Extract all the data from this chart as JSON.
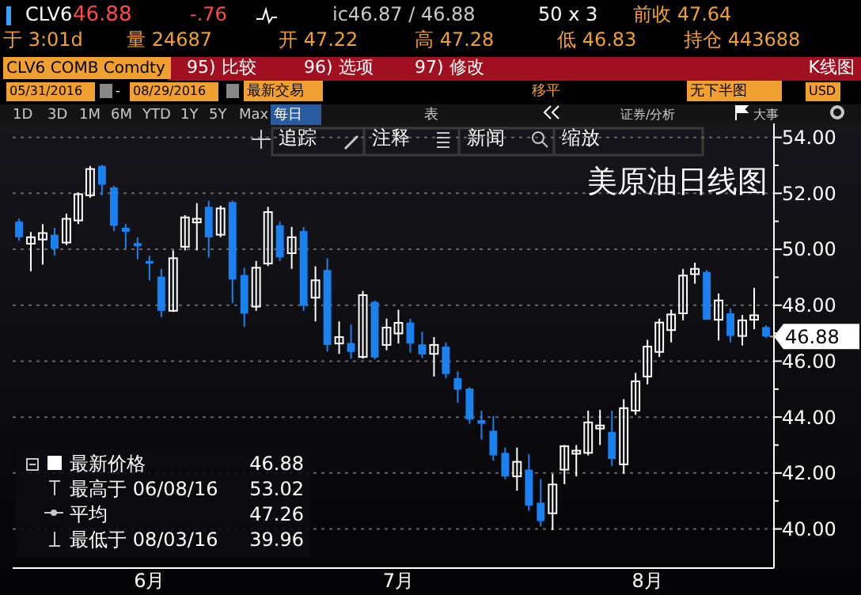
{
  "chart_data": {
    "type": "candlestick",
    "title": "美原油日线图",
    "categories": [
      null,
      null,
      null,
      null,
      null,
      null,
      null,
      null,
      null,
      null,
      null,
      "6月",
      null,
      null,
      null,
      null,
      null,
      null,
      null,
      null,
      null,
      null,
      null,
      null,
      null,
      null,
      null,
      null,
      null,
      null,
      null,
      null,
      "7月",
      null,
      null,
      null,
      null,
      null,
      null,
      null,
      null,
      null,
      null,
      null,
      null,
      null,
      null,
      null,
      null,
      null,
      null,
      null,
      null,
      "8月",
      null,
      null,
      null,
      null,
      null,
      null,
      null,
      null,
      null,
      null
    ],
    "ohlc": [
      [
        50.99,
        51.1,
        50.3,
        50.43
      ],
      [
        50.2,
        50.62,
        49.21,
        50.43
      ],
      [
        50.35,
        50.9,
        49.45,
        50.58
      ],
      [
        50.52,
        50.77,
        49.77,
        50.02
      ],
      [
        50.24,
        51.27,
        50.15,
        51.09
      ],
      [
        51.03,
        52.03,
        50.9,
        51.97
      ],
      [
        51.93,
        52.98,
        51.84,
        52.87
      ],
      [
        52.98,
        53.02,
        51.93,
        52.31
      ],
      [
        52.21,
        52.27,
        50.65,
        50.84
      ],
      [
        50.77,
        50.9,
        50.02,
        50.62
      ],
      [
        50.22,
        50.43,
        49.64,
        50.11
      ],
      [
        49.58,
        49.77,
        48.89,
        49.49
      ],
      [
        49.02,
        49.3,
        47.57,
        47.8
      ],
      [
        47.8,
        49.96,
        47.76,
        49.68
      ],
      [
        50.09,
        51.22,
        49.96,
        51.14
      ],
      [
        50.96,
        51.65,
        49.96,
        51.09
      ],
      [
        51.52,
        51.74,
        49.71,
        50.43
      ],
      [
        50.52,
        51.56,
        50.43,
        51.46
      ],
      [
        51.69,
        51.74,
        48.08,
        48.92
      ],
      [
        49.08,
        49.34,
        47.23,
        47.7
      ],
      [
        47.95,
        49.58,
        47.8,
        49.34
      ],
      [
        49.49,
        51.52,
        49.4,
        51.33
      ],
      [
        50.86,
        50.99,
        49.58,
        49.71
      ],
      [
        49.86,
        50.8,
        49.3,
        50.43
      ],
      [
        50.65,
        50.8,
        47.8,
        47.98
      ],
      [
        48.27,
        49.39,
        47.42,
        48.89
      ],
      [
        49.26,
        49.68,
        46.34,
        46.58
      ],
      [
        46.63,
        47.42,
        46.26,
        46.86
      ],
      [
        46.65,
        47.31,
        46.09,
        46.33
      ],
      [
        46.15,
        48.51,
        46.09,
        48.36
      ],
      [
        48.12,
        48.17,
        46.06,
        46.13
      ],
      [
        46.58,
        47.52,
        46.39,
        47.2
      ],
      [
        46.99,
        47.84,
        46.63,
        47.37
      ],
      [
        47.38,
        47.52,
        46.3,
        46.63
      ],
      [
        46.6,
        47.05,
        46.11,
        46.24
      ],
      [
        46.26,
        46.86,
        45.45,
        46.58
      ],
      [
        46.52,
        46.67,
        45.39,
        45.54
      ],
      [
        45.39,
        45.63,
        44.51,
        44.98
      ],
      [
        45.02,
        45.07,
        43.76,
        43.91
      ],
      [
        43.89,
        44.23,
        43.19,
        43.76
      ],
      [
        43.51,
        44.04,
        42.44,
        42.63
      ],
      [
        42.72,
        42.91,
        41.78,
        41.88
      ],
      [
        41.88,
        42.91,
        41.37,
        42.4
      ],
      [
        42.12,
        42.68,
        40.65,
        40.84
      ],
      [
        40.94,
        41.78,
        40.09,
        40.28
      ],
      [
        40.56,
        41.97,
        39.96,
        41.59
      ],
      [
        42.12,
        43.0,
        41.6,
        42.96
      ],
      [
        42.69,
        43.0,
        41.88,
        42.8
      ],
      [
        42.72,
        44.23,
        42.63,
        43.81
      ],
      [
        43.59,
        44.26,
        43.0,
        43.7
      ],
      [
        43.47,
        44.23,
        42.25,
        42.5
      ],
      [
        42.31,
        44.64,
        41.97,
        44.32
      ],
      [
        44.23,
        45.58,
        44.08,
        45.28
      ],
      [
        45.45,
        46.76,
        45.17,
        46.52
      ],
      [
        46.33,
        47.52,
        46.15,
        47.38
      ],
      [
        47.11,
        47.84,
        46.67,
        47.67
      ],
      [
        47.71,
        49.3,
        47.46,
        49.06
      ],
      [
        49.11,
        49.52,
        48.77,
        49.3
      ],
      [
        49.19,
        49.26,
        47.48,
        47.48
      ],
      [
        47.48,
        48.42,
        46.74,
        48.17
      ],
      [
        47.71,
        47.89,
        46.67,
        46.9
      ],
      [
        46.9,
        47.65,
        46.56,
        47.46
      ],
      [
        47.48,
        48.62,
        47.14,
        47.64
      ],
      [
        47.22,
        47.28,
        46.83,
        46.88
      ]
    ],
    "colors": [
      "#1a82f0",
      "#ffffff",
      "#ffffff",
      "#1a82f0",
      "#ffffff",
      "#ffffff",
      "#ffffff",
      "#1a82f0",
      "#1a82f0",
      "#1a82f0",
      "#1a82f0",
      "#1a82f0",
      "#1a82f0",
      "#ffffff",
      "#ffffff",
      "#ffffff",
      "#1a82f0",
      "#ffffff",
      "#1a82f0",
      "#1a82f0",
      "#ffffff",
      "#ffffff",
      "#1a82f0",
      "#ffffff",
      "#1a82f0",
      "#ffffff",
      "#1a82f0",
      "#ffffff",
      "#1a82f0",
      "#ffffff",
      "#1a82f0",
      "#ffffff",
      "#ffffff",
      "#1a82f0",
      "#1a82f0",
      "#ffffff",
      "#1a82f0",
      "#1a82f0",
      "#1a82f0",
      "#1a82f0",
      "#1a82f0",
      "#1a82f0",
      "#ffffff",
      "#1a82f0",
      "#1a82f0",
      "#ffffff",
      "#ffffff",
      "#ffffff",
      "#ffffff",
      "#ffffff",
      "#1a82f0",
      "#ffffff",
      "#ffffff",
      "#ffffff",
      "#ffffff",
      "#ffffff",
      "#ffffff",
      "#ffffff",
      "#1a82f0",
      "#ffffff",
      "#1a82f0",
      "#ffffff",
      "#ffffff",
      "#1a82f0"
    ],
    "ylim": [
      38.6,
      54.5
    ],
    "yticks": [
      {
        "value": 40,
        "label": "40.00"
      },
      {
        "value": 41,
        "label": null
      },
      {
        "value": 42,
        "label": "42.00"
      },
      {
        "value": 43,
        "label": null
      },
      {
        "value": 44,
        "label": "44.00"
      },
      {
        "value": 45,
        "label": null
      },
      {
        "value": 46,
        "label": "46.00"
      },
      {
        "value": 47,
        "label": null
      },
      {
        "value": 48,
        "label": "48.00"
      },
      {
        "value": 49,
        "label": null
      },
      {
        "value": 50,
        "label": "50.00"
      },
      {
        "value": 51,
        "label": null
      },
      {
        "value": 52,
        "label": "52.00"
      },
      {
        "value": 53,
        "label": null
      },
      {
        "value": 54,
        "label": "54.00"
      }
    ],
    "grid": "y",
    "annotations": [
      "46.88",
      "CLV6",
      "46.88",
      "-.76",
      "ic46.87 / 46.88",
      "50 x 3",
      "前收 47.64",
      "于 3:01d",
      "量 24687",
      "开 47.22",
      "高 47.28",
      "低 46.83",
      "持仓 443688",
      "CLV6 COMB Comdty",
      "95) 比较",
      "96) 选项",
      "97) 修改",
      "K线图",
      "05/31/2016",
      "-",
      "08/29/2016",
      "最新交易",
      "移平",
      "无下半图",
      "USD",
      "1D",
      "3D",
      "1M",
      "6M",
      "YTD",
      "1Y",
      "5Y",
      "Max",
      "每日",
      "表",
      "证券/分析",
      "大事",
      "追踪",
      "注释",
      "新闻",
      "缩放",
      "最新价格",
      "46.88",
      "最高于 06/08/16",
      "53.02",
      "平均",
      "47.26",
      "最低于 08/03/16",
      "39.96"
    ]
  }
}
